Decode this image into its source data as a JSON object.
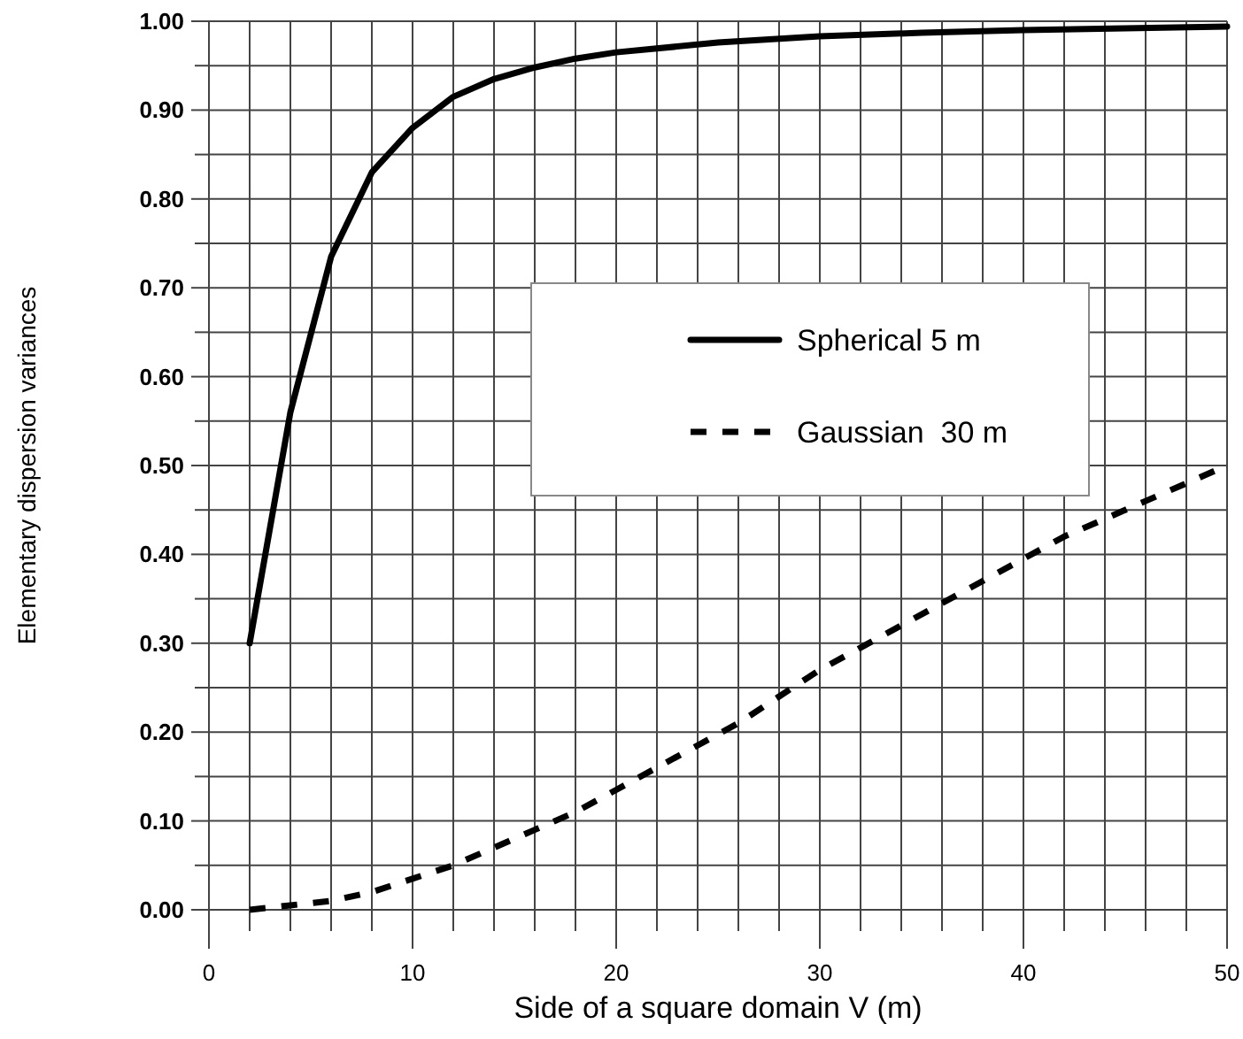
{
  "chart_data": {
    "type": "line",
    "xlabel": "Side of a square domain V (m)",
    "ylabel": "Elementary dispersion variances",
    "xlim": [
      0,
      50
    ],
    "ylim": [
      0,
      1
    ],
    "xticks": [
      0,
      {
        "value": 2,
        "label": null
      },
      {
        "value": 4,
        "label": null
      },
      {
        "value": 6,
        "label": null
      },
      {
        "value": 8,
        "label": null
      },
      10,
      {
        "value": 12,
        "label": null
      },
      {
        "value": 14,
        "label": null
      },
      {
        "value": 16,
        "label": null
      },
      {
        "value": 18,
        "label": null
      },
      20,
      {
        "value": 22,
        "label": null
      },
      {
        "value": 24,
        "label": null
      },
      {
        "value": 26,
        "label": null
      },
      {
        "value": 28,
        "label": null
      },
      30,
      {
        "value": 32,
        "label": null
      },
      {
        "value": 34,
        "label": null
      },
      {
        "value": 36,
        "label": null
      },
      {
        "value": 38,
        "label": null
      },
      40,
      {
        "value": 42,
        "label": null
      },
      {
        "value": 44,
        "label": null
      },
      {
        "value": 46,
        "label": null
      },
      {
        "value": 48,
        "label": null
      },
      50
    ],
    "yticks": [
      {
        "value": 0,
        "label": "0.00"
      },
      {
        "value": 0.05,
        "label": null
      },
      {
        "value": 0.1,
        "label": "0.10"
      },
      {
        "value": 0.15,
        "label": null
      },
      {
        "value": 0.2,
        "label": "0.20"
      },
      {
        "value": 0.25,
        "label": null
      },
      {
        "value": 0.3,
        "label": "0.30"
      },
      {
        "value": 0.35,
        "label": null
      },
      {
        "value": 0.4,
        "label": "0.40"
      },
      {
        "value": 0.45,
        "label": null
      },
      {
        "value": 0.5,
        "label": "0.50"
      },
      {
        "value": 0.55,
        "label": null
      },
      {
        "value": 0.6,
        "label": "0.60"
      },
      {
        "value": 0.65,
        "label": null
      },
      {
        "value": 0.7,
        "label": "0.70"
      },
      {
        "value": 0.75,
        "label": null
      },
      {
        "value": 0.8,
        "label": "0.80"
      },
      {
        "value": 0.85,
        "label": null
      },
      {
        "value": 0.9,
        "label": "0.90"
      },
      {
        "value": 0.95,
        "label": null
      },
      {
        "value": 1,
        "label": "1.00"
      }
    ],
    "grid": true,
    "legend": "right",
    "marker": "none",
    "series": [
      {
        "name": "Spherical 5 m",
        "color": "#000000",
        "line_style": "solid",
        "x": [
          2,
          4,
          6,
          8,
          10,
          12,
          14,
          16,
          18,
          20,
          25,
          30,
          35,
          40,
          45,
          50
        ],
        "values": [
          0.3,
          0.56,
          0.735,
          0.83,
          0.88,
          0.915,
          0.935,
          0.948,
          0.958,
          0.965,
          0.976,
          0.983,
          0.987,
          0.99,
          0.992,
          0.994
        ]
      },
      {
        "name": "Gaussian  30 m",
        "color": "#000000",
        "line_style": "dashed",
        "x": [
          2,
          4,
          6,
          8,
          10,
          12,
          14,
          16,
          18,
          20,
          22,
          24,
          26,
          28,
          30,
          32,
          34,
          36,
          38,
          40,
          42,
          44,
          46,
          48,
          50
        ],
        "values": [
          0.0,
          0.005,
          0.01,
          0.02,
          0.035,
          0.05,
          0.07,
          0.09,
          0.11,
          0.135,
          0.16,
          0.185,
          0.21,
          0.24,
          0.27,
          0.295,
          0.32,
          0.345,
          0.37,
          0.395,
          0.42,
          0.44,
          0.46,
          0.48,
          0.5
        ]
      }
    ]
  }
}
